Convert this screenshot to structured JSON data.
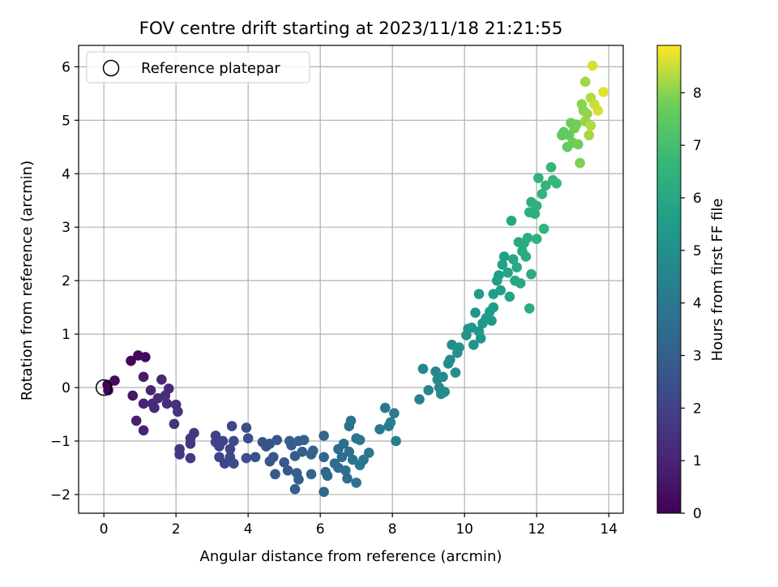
{
  "chart_data": {
    "type": "scatter",
    "title": "FOV centre drift starting at 2023/11/18 21:21:55",
    "xlabel": "Angular distance from reference (arcmin)",
    "ylabel": "Rotation from reference (arcmin)",
    "xlim": [
      -0.7,
      14.4
    ],
    "ylim": [
      -2.35,
      6.4
    ],
    "xticks": [
      0,
      2,
      4,
      6,
      8,
      10,
      12,
      14
    ],
    "yticks": [
      -2,
      -1,
      0,
      1,
      2,
      3,
      4,
      5,
      6
    ],
    "grid": true,
    "legend": {
      "position": "top-left",
      "entries": [
        "Reference platepar"
      ]
    },
    "reference_point": {
      "x": 0,
      "y": 0
    },
    "colorbar": {
      "label": "Hours from first FF file",
      "min": 0,
      "max": 8.9,
      "ticks": [
        0,
        1,
        2,
        3,
        4,
        5,
        6,
        7,
        8
      ],
      "colormap": "viridis"
    },
    "points": [
      {
        "x": 0.1,
        "y": 0.05,
        "h": 0.1
      },
      {
        "x": 0.12,
        "y": -0.05,
        "h": 0.12
      },
      {
        "x": 0.3,
        "y": 0.13,
        "h": 0.2
      },
      {
        "x": 0.75,
        "y": 0.5,
        "h": 0.15
      },
      {
        "x": 0.95,
        "y": 0.6,
        "h": 0.2
      },
      {
        "x": 1.15,
        "y": 0.57,
        "h": 0.25
      },
      {
        "x": 0.8,
        "y": -0.15,
        "h": 0.6
      },
      {
        "x": 1.1,
        "y": 0.2,
        "h": 0.7
      },
      {
        "x": 0.9,
        "y": -0.62,
        "h": 0.9
      },
      {
        "x": 1.1,
        "y": -0.8,
        "h": 1.0
      },
      {
        "x": 1.1,
        "y": -0.3,
        "h": 1.0
      },
      {
        "x": 1.3,
        "y": -0.05,
        "h": 1.0
      },
      {
        "x": 1.35,
        "y": -0.3,
        "h": 1.1
      },
      {
        "x": 1.4,
        "y": -0.38,
        "h": 1.1
      },
      {
        "x": 1.5,
        "y": -0.2,
        "h": 1.2
      },
      {
        "x": 1.6,
        "y": 0.15,
        "h": 1.1
      },
      {
        "x": 1.7,
        "y": -0.15,
        "h": 1.3
      },
      {
        "x": 1.75,
        "y": -0.3,
        "h": 1.3
      },
      {
        "x": 1.8,
        "y": -0.02,
        "h": 1.2
      },
      {
        "x": 1.95,
        "y": -0.68,
        "h": 1.4
      },
      {
        "x": 2.0,
        "y": -0.32,
        "h": 1.4
      },
      {
        "x": 2.05,
        "y": -0.45,
        "h": 1.5
      },
      {
        "x": 2.1,
        "y": -1.15,
        "h": 1.6
      },
      {
        "x": 2.1,
        "y": -1.25,
        "h": 1.6
      },
      {
        "x": 2.4,
        "y": -1.05,
        "h": 1.6
      },
      {
        "x": 2.4,
        "y": -0.95,
        "h": 1.7
      },
      {
        "x": 2.5,
        "y": -0.85,
        "h": 1.7
      },
      {
        "x": 2.4,
        "y": -1.32,
        "h": 1.8
      },
      {
        "x": 3.1,
        "y": -0.9,
        "h": 2.0
      },
      {
        "x": 3.1,
        "y": -1.02,
        "h": 2.0
      },
      {
        "x": 3.2,
        "y": -1.1,
        "h": 2.0
      },
      {
        "x": 3.3,
        "y": -1.0,
        "h": 2.1
      },
      {
        "x": 3.2,
        "y": -1.3,
        "h": 2.1
      },
      {
        "x": 3.35,
        "y": -1.42,
        "h": 2.1
      },
      {
        "x": 3.5,
        "y": -1.15,
        "h": 2.2
      },
      {
        "x": 3.5,
        "y": -1.3,
        "h": 2.2
      },
      {
        "x": 3.55,
        "y": -0.72,
        "h": 2.2
      },
      {
        "x": 3.6,
        "y": -1.0,
        "h": 2.3
      },
      {
        "x": 3.6,
        "y": -1.42,
        "h": 2.3
      },
      {
        "x": 3.95,
        "y": -0.75,
        "h": 2.4
      },
      {
        "x": 4.0,
        "y": -0.95,
        "h": 2.4
      },
      {
        "x": 3.95,
        "y": -1.32,
        "h": 2.5
      },
      {
        "x": 4.2,
        "y": -1.3,
        "h": 2.5
      },
      {
        "x": 4.4,
        "y": -1.02,
        "h": 2.6
      },
      {
        "x": 4.5,
        "y": -1.1,
        "h": 2.6
      },
      {
        "x": 4.6,
        "y": -1.05,
        "h": 2.6
      },
      {
        "x": 4.6,
        "y": -1.38,
        "h": 2.7
      },
      {
        "x": 4.7,
        "y": -1.3,
        "h": 2.7
      },
      {
        "x": 4.8,
        "y": -0.98,
        "h": 2.7
      },
      {
        "x": 4.75,
        "y": -1.62,
        "h": 2.8
      },
      {
        "x": 5.0,
        "y": -1.4,
        "h": 2.8
      },
      {
        "x": 5.1,
        "y": -1.55,
        "h": 2.8
      },
      {
        "x": 5.15,
        "y": -1.0,
        "h": 2.9
      },
      {
        "x": 5.2,
        "y": -1.08,
        "h": 2.9
      },
      {
        "x": 5.3,
        "y": -1.28,
        "h": 2.9
      },
      {
        "x": 5.35,
        "y": -1.6,
        "h": 3.0
      },
      {
        "x": 5.4,
        "y": -1.72,
        "h": 3.0
      },
      {
        "x": 5.3,
        "y": -1.9,
        "h": 3.0
      },
      {
        "x": 5.4,
        "y": -1.0,
        "h": 3.0
      },
      {
        "x": 5.55,
        "y": -0.98,
        "h": 3.1
      },
      {
        "x": 5.5,
        "y": -1.2,
        "h": 3.1
      },
      {
        "x": 5.75,
        "y": -1.25,
        "h": 3.1
      },
      {
        "x": 5.8,
        "y": -1.18,
        "h": 3.2
      },
      {
        "x": 5.75,
        "y": -1.62,
        "h": 3.2
      },
      {
        "x": 6.1,
        "y": -0.9,
        "h": 3.3
      },
      {
        "x": 6.1,
        "y": -1.3,
        "h": 3.3
      },
      {
        "x": 6.15,
        "y": -1.58,
        "h": 3.3
      },
      {
        "x": 6.2,
        "y": -1.65,
        "h": 3.4
      },
      {
        "x": 6.1,
        "y": -1.95,
        "h": 3.4
      },
      {
        "x": 6.4,
        "y": -1.42,
        "h": 3.5
      },
      {
        "x": 6.5,
        "y": -1.15,
        "h": 3.5
      },
      {
        "x": 6.5,
        "y": -1.5,
        "h": 3.5
      },
      {
        "x": 6.6,
        "y": -1.3,
        "h": 3.6
      },
      {
        "x": 6.65,
        "y": -1.05,
        "h": 3.6
      },
      {
        "x": 6.7,
        "y": -1.55,
        "h": 3.6
      },
      {
        "x": 6.75,
        "y": -1.7,
        "h": 3.7
      },
      {
        "x": 6.8,
        "y": -1.2,
        "h": 3.7
      },
      {
        "x": 6.8,
        "y": -0.72,
        "h": 3.7
      },
      {
        "x": 6.85,
        "y": -0.62,
        "h": 3.8
      },
      {
        "x": 6.9,
        "y": -1.35,
        "h": 3.8
      },
      {
        "x": 7.0,
        "y": -0.95,
        "h": 3.8
      },
      {
        "x": 7.0,
        "y": -1.78,
        "h": 3.9
      },
      {
        "x": 7.1,
        "y": -0.98,
        "h": 3.9
      },
      {
        "x": 7.1,
        "y": -1.45,
        "h": 3.9
      },
      {
        "x": 7.2,
        "y": -1.35,
        "h": 4.0
      },
      {
        "x": 7.35,
        "y": -1.22,
        "h": 4.0
      },
      {
        "x": 7.65,
        "y": -0.78,
        "h": 4.1
      },
      {
        "x": 7.8,
        "y": -0.38,
        "h": 4.1
      },
      {
        "x": 7.9,
        "y": -0.72,
        "h": 4.2
      },
      {
        "x": 7.95,
        "y": -0.65,
        "h": 4.2
      },
      {
        "x": 8.05,
        "y": -0.48,
        "h": 4.2
      },
      {
        "x": 8.1,
        "y": -1.0,
        "h": 4.3
      },
      {
        "x": 8.75,
        "y": -0.22,
        "h": 4.5
      },
      {
        "x": 8.85,
        "y": 0.35,
        "h": 4.6
      },
      {
        "x": 9.0,
        "y": -0.05,
        "h": 4.6
      },
      {
        "x": 9.2,
        "y": 0.3,
        "h": 4.7
      },
      {
        "x": 9.25,
        "y": 0.15,
        "h": 4.7
      },
      {
        "x": 9.3,
        "y": 0.0,
        "h": 4.7
      },
      {
        "x": 9.35,
        "y": -0.12,
        "h": 4.8
      },
      {
        "x": 9.4,
        "y": 0.2,
        "h": 4.8
      },
      {
        "x": 9.45,
        "y": -0.08,
        "h": 4.8
      },
      {
        "x": 9.55,
        "y": 0.45,
        "h": 4.9
      },
      {
        "x": 9.6,
        "y": 0.52,
        "h": 4.9
      },
      {
        "x": 9.65,
        "y": 0.8,
        "h": 4.9
      },
      {
        "x": 9.75,
        "y": 0.28,
        "h": 5.0
      },
      {
        "x": 9.8,
        "y": 0.65,
        "h": 5.0
      },
      {
        "x": 9.85,
        "y": 0.75,
        "h": 5.0
      },
      {
        "x": 10.05,
        "y": 0.98,
        "h": 5.1
      },
      {
        "x": 10.1,
        "y": 1.1,
        "h": 5.1
      },
      {
        "x": 10.2,
        "y": 1.12,
        "h": 5.2
      },
      {
        "x": 10.25,
        "y": 0.8,
        "h": 5.2
      },
      {
        "x": 10.3,
        "y": 1.4,
        "h": 5.2
      },
      {
        "x": 10.4,
        "y": 1.05,
        "h": 5.3
      },
      {
        "x": 10.45,
        "y": 0.92,
        "h": 5.3
      },
      {
        "x": 10.5,
        "y": 1.2,
        "h": 5.3
      },
      {
        "x": 10.6,
        "y": 1.3,
        "h": 5.4
      },
      {
        "x": 10.4,
        "y": 1.75,
        "h": 5.4
      },
      {
        "x": 10.7,
        "y": 1.42,
        "h": 5.5
      },
      {
        "x": 10.75,
        "y": 1.25,
        "h": 5.5
      },
      {
        "x": 10.8,
        "y": 1.5,
        "h": 5.5
      },
      {
        "x": 10.8,
        "y": 1.75,
        "h": 5.6
      },
      {
        "x": 10.9,
        "y": 2.0,
        "h": 5.6
      },
      {
        "x": 10.95,
        "y": 2.1,
        "h": 5.6
      },
      {
        "x": 11.0,
        "y": 1.82,
        "h": 5.7
      },
      {
        "x": 11.05,
        "y": 2.3,
        "h": 5.7
      },
      {
        "x": 11.1,
        "y": 2.45,
        "h": 5.7
      },
      {
        "x": 11.2,
        "y": 2.15,
        "h": 5.8
      },
      {
        "x": 11.25,
        "y": 1.7,
        "h": 5.8
      },
      {
        "x": 11.3,
        "y": 3.12,
        "h": 5.9
      },
      {
        "x": 11.35,
        "y": 2.4,
        "h": 5.9
      },
      {
        "x": 11.4,
        "y": 2.0,
        "h": 5.9
      },
      {
        "x": 11.45,
        "y": 2.25,
        "h": 6.0
      },
      {
        "x": 11.5,
        "y": 2.72,
        "h": 6.0
      },
      {
        "x": 11.55,
        "y": 1.95,
        "h": 6.0
      },
      {
        "x": 11.6,
        "y": 2.55,
        "h": 6.1
      },
      {
        "x": 11.65,
        "y": 2.7,
        "h": 6.1
      },
      {
        "x": 11.7,
        "y": 2.45,
        "h": 6.1
      },
      {
        "x": 11.75,
        "y": 2.8,
        "h": 6.2
      },
      {
        "x": 11.8,
        "y": 1.48,
        "h": 6.2
      },
      {
        "x": 11.85,
        "y": 2.12,
        "h": 6.2
      },
      {
        "x": 11.8,
        "y": 3.28,
        "h": 6.3
      },
      {
        "x": 11.85,
        "y": 3.47,
        "h": 6.3
      },
      {
        "x": 11.95,
        "y": 3.25,
        "h": 6.3
      },
      {
        "x": 12.0,
        "y": 3.4,
        "h": 6.4
      },
      {
        "x": 12.0,
        "y": 2.78,
        "h": 6.4
      },
      {
        "x": 12.05,
        "y": 3.92,
        "h": 6.4
      },
      {
        "x": 12.15,
        "y": 3.62,
        "h": 6.5
      },
      {
        "x": 12.2,
        "y": 2.97,
        "h": 6.5
      },
      {
        "x": 12.25,
        "y": 3.78,
        "h": 6.5
      },
      {
        "x": 12.4,
        "y": 4.12,
        "h": 6.6
      },
      {
        "x": 12.45,
        "y": 3.88,
        "h": 6.6
      },
      {
        "x": 12.55,
        "y": 3.82,
        "h": 6.7
      },
      {
        "x": 12.7,
        "y": 4.72,
        "h": 7.5
      },
      {
        "x": 12.75,
        "y": 4.78,
        "h": 7.5
      },
      {
        "x": 12.85,
        "y": 4.5,
        "h": 7.6
      },
      {
        "x": 12.9,
        "y": 4.72,
        "h": 7.6
      },
      {
        "x": 12.95,
        "y": 4.95,
        "h": 7.7
      },
      {
        "x": 13.0,
        "y": 4.58,
        "h": 7.7
      },
      {
        "x": 13.05,
        "y": 4.85,
        "h": 7.8
      },
      {
        "x": 13.1,
        "y": 4.92,
        "h": 7.8
      },
      {
        "x": 13.15,
        "y": 4.55,
        "h": 7.8
      },
      {
        "x": 13.2,
        "y": 4.2,
        "h": 7.9
      },
      {
        "x": 13.25,
        "y": 5.3,
        "h": 8.0
      },
      {
        "x": 13.3,
        "y": 5.18,
        "h": 8.0
      },
      {
        "x": 13.35,
        "y": 4.98,
        "h": 8.1
      },
      {
        "x": 13.4,
        "y": 5.12,
        "h": 8.1
      },
      {
        "x": 13.35,
        "y": 5.72,
        "h": 8.2
      },
      {
        "x": 13.45,
        "y": 4.72,
        "h": 8.2
      },
      {
        "x": 13.5,
        "y": 5.42,
        "h": 8.3
      },
      {
        "x": 13.5,
        "y": 4.9,
        "h": 8.3
      },
      {
        "x": 13.55,
        "y": 6.02,
        "h": 8.6
      },
      {
        "x": 13.6,
        "y": 5.3,
        "h": 8.5
      },
      {
        "x": 13.7,
        "y": 5.18,
        "h": 8.6
      },
      {
        "x": 13.85,
        "y": 5.53,
        "h": 8.7
      }
    ]
  }
}
